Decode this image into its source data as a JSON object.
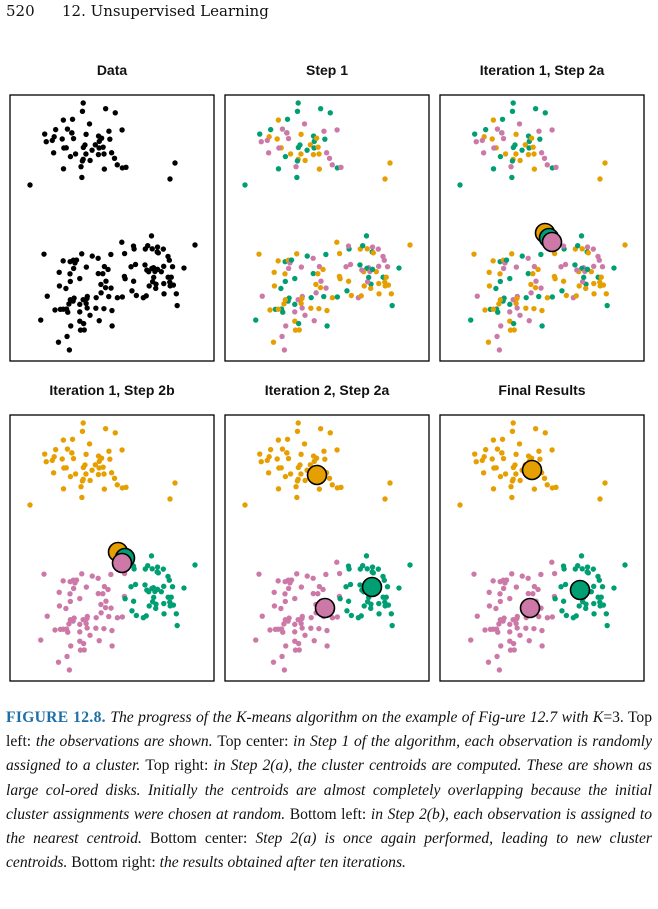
{
  "header": {
    "page_number": "520",
    "chapter": "12. Unsupervised Learning"
  },
  "colors": {
    "data": "#000000",
    "cluster_1": "#e69f00",
    "cluster_2": "#cc79a7",
    "cluster_3": "#009e73",
    "frame": "#000000"
  },
  "chart_data": [
    {
      "type": "scatter",
      "title": "Data",
      "points": "unassigned observations"
    },
    {
      "type": "scatter",
      "title": "Step 1",
      "points": "random cluster assignment"
    },
    {
      "type": "scatter",
      "title": "Iteration 1, Step 2a",
      "centroids": "three nearly overlapping"
    },
    {
      "type": "scatter",
      "title": "Iteration 1, Step 2b",
      "centroids": "three nearly overlapping"
    },
    {
      "type": "scatter",
      "title": "Iteration 2, Step 2a",
      "centroids": "separated"
    },
    {
      "type": "scatter",
      "title": "Final Results",
      "centroids": "separated"
    }
  ],
  "caption": {
    "label": "FIGURE 12.8.",
    "parts": [
      {
        "t": " The progress of the K-means algorithm on the example of Fig-ure 12.7 with ",
        "s": "i"
      },
      {
        "t": "K",
        "s": "i"
      },
      {
        "t": "=3. ",
        "s": "u"
      },
      {
        "t": "Top left: ",
        "s": "u"
      },
      {
        "t": "the observations are shown. ",
        "s": "i"
      },
      {
        "t": "Top center: ",
        "s": "u"
      },
      {
        "t": "in Step 1 of the algorithm, each observation is randomly assigned to a cluster. ",
        "s": "i"
      },
      {
        "t": "Top right: ",
        "s": "u"
      },
      {
        "t": "in Step 2(a), the cluster centroids are computed. These are shown as large col-ored disks. Initially the centroids are almost completely overlapping because the initial cluster assignments were chosen at random. ",
        "s": "i"
      },
      {
        "t": "Bottom left: ",
        "s": "u"
      },
      {
        "t": "in Step 2(b), each observation is assigned to the nearest centroid. ",
        "s": "i"
      },
      {
        "t": "Bottom center: ",
        "s": "u"
      },
      {
        "t": "Step 2(a) is once again performed, leading to new cluster centroids. ",
        "s": "i"
      },
      {
        "t": "Bottom right: ",
        "s": "u"
      },
      {
        "t": "the results obtained after ten iterations.",
        "s": "i"
      }
    ]
  }
}
